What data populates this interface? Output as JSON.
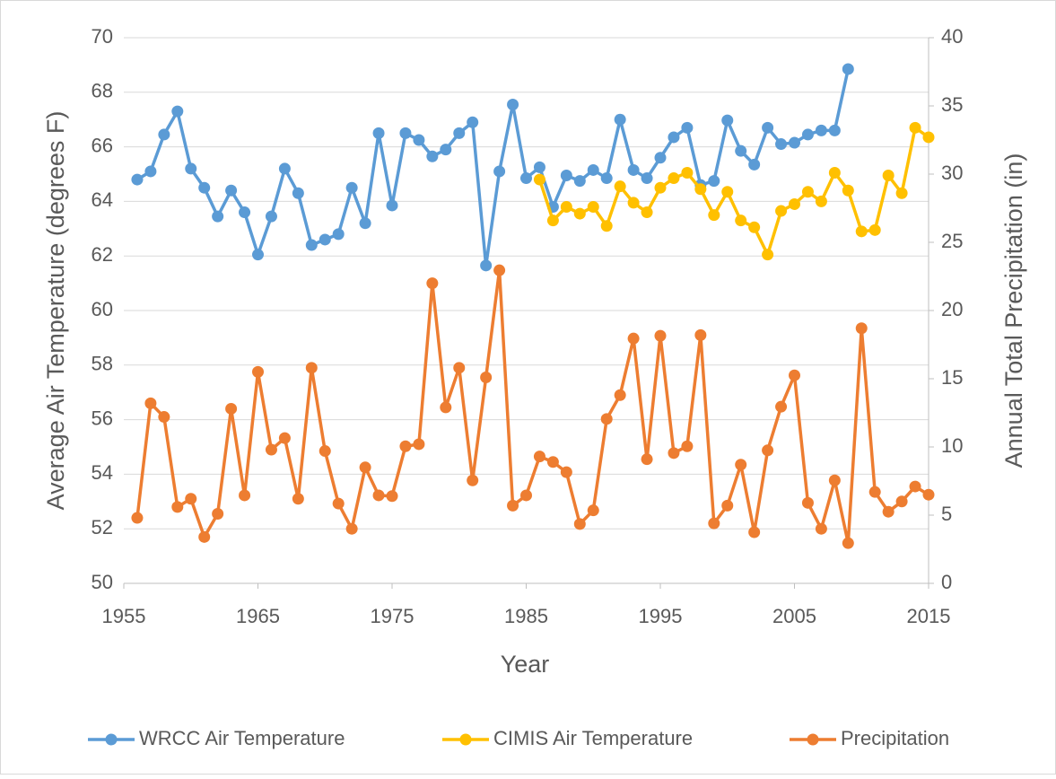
{
  "chart_data": {
    "type": "line",
    "x_label": "Year",
    "y_label": "Average Air Temperature (degrees F)",
    "y2_label": "Annual Total Precipitation (in)",
    "x": [
      1956,
      1957,
      1958,
      1959,
      1960,
      1961,
      1962,
      1963,
      1964,
      1965,
      1966,
      1967,
      1968,
      1969,
      1970,
      1971,
      1972,
      1973,
      1974,
      1975,
      1976,
      1977,
      1978,
      1979,
      1980,
      1981,
      1982,
      1983,
      1984,
      1985,
      1986,
      1987,
      1988,
      1989,
      1990,
      1991,
      1992,
      1993,
      1994,
      1995,
      1996,
      1997,
      1998,
      1999,
      2000,
      2001,
      2002,
      2003,
      2004,
      2005,
      2006,
      2007,
      2008,
      2009,
      2010,
      2011,
      2012,
      2013,
      2014,
      2015
    ],
    "xlim": [
      1955,
      2015
    ],
    "xticks": [
      1955,
      1965,
      1975,
      1985,
      1995,
      2005,
      2015
    ],
    "ylim": [
      50,
      70
    ],
    "yticks": [
      50,
      52,
      54,
      56,
      58,
      60,
      62,
      64,
      66,
      68,
      70
    ],
    "y2lim": [
      0,
      40
    ],
    "y2ticks": [
      0,
      5,
      10,
      15,
      20,
      25,
      30,
      35,
      40
    ],
    "grid": true,
    "legend": "bottom",
    "series": [
      {
        "name": "WRCC Air Temperature",
        "color": "#5b9bd5",
        "values": [
          64.8,
          65.1,
          66.45,
          67.3,
          65.2,
          64.5,
          63.45,
          64.4,
          63.6,
          62.05,
          63.45,
          65.2,
          64.3,
          62.4,
          62.6,
          62.8,
          64.5,
          63.2,
          66.5,
          63.85,
          66.5,
          66.25,
          65.65,
          65.9,
          66.5,
          66.9,
          61.65,
          65.1,
          67.55,
          64.85,
          65.25,
          63.8,
          64.95,
          64.75,
          65.15,
          64.85,
          67.0,
          65.15,
          64.85,
          65.6,
          66.35,
          66.7,
          64.6,
          64.75,
          66.97,
          65.85,
          65.35,
          66.7,
          66.1,
          66.15,
          66.45,
          66.6,
          66.6,
          68.85,
          null,
          null,
          null,
          null,
          null,
          null
        ]
      },
      {
        "name": "CIMIS Air Temperature",
        "color": "#ffc000",
        "values": [
          null,
          null,
          null,
          null,
          null,
          null,
          null,
          null,
          null,
          null,
          null,
          null,
          null,
          null,
          null,
          null,
          null,
          null,
          null,
          null,
          null,
          null,
          null,
          null,
          null,
          null,
          null,
          null,
          null,
          null,
          64.8,
          63.3,
          63.8,
          63.55,
          63.8,
          63.1,
          64.55,
          63.95,
          63.6,
          64.5,
          64.85,
          65.05,
          64.45,
          63.5,
          64.35,
          63.3,
          63.05,
          62.05,
          63.65,
          63.9,
          64.35,
          64.0,
          65.05,
          64.4,
          62.9,
          62.95,
          64.95,
          64.3,
          66.7,
          66.35
        ]
      },
      {
        "name": "Precipitation",
        "color": "#ed7d31",
        "axis": "y2",
        "values": [
          4.8,
          13.2,
          12.2,
          5.6,
          6.2,
          3.4,
          5.1,
          12.8,
          6.45,
          15.5,
          9.8,
          10.65,
          6.2,
          15.8,
          9.7,
          5.85,
          4.0,
          8.5,
          6.45,
          6.4,
          10.05,
          10.2,
          22.0,
          12.9,
          15.8,
          7.55,
          15.1,
          22.95,
          5.7,
          6.45,
          9.3,
          8.9,
          8.15,
          4.35,
          5.35,
          12.05,
          13.8,
          17.95,
          9.1,
          18.15,
          9.55,
          10.05,
          18.2,
          4.4,
          5.7,
          8.7,
          3.75,
          9.75,
          12.95,
          15.25,
          5.9,
          4.0,
          7.55,
          2.95,
          18.7,
          6.7,
          5.25,
          6.0,
          7.1,
          6.5
        ]
      }
    ]
  }
}
